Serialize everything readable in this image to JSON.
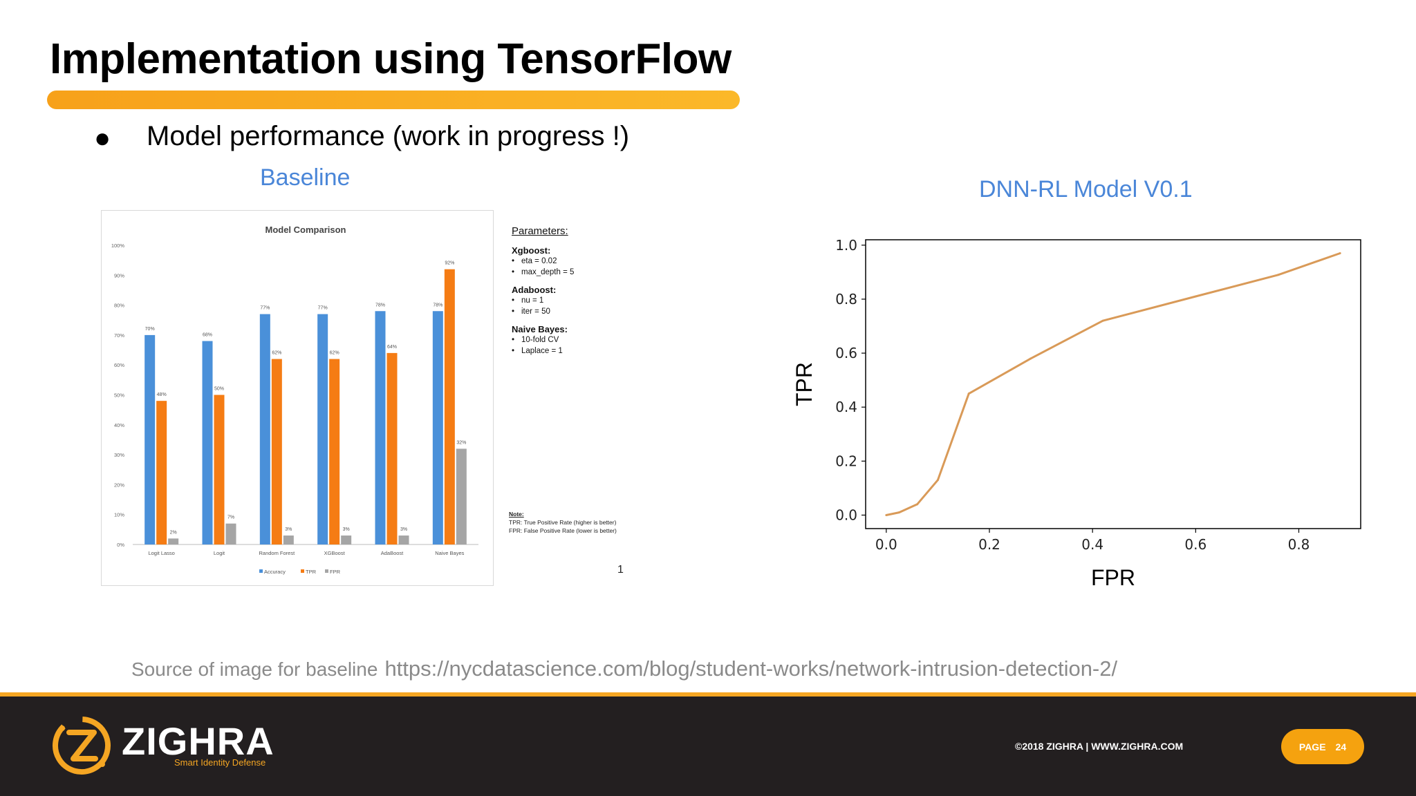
{
  "slide": {
    "title": "Implementation using TensorFlow",
    "bullet_symbol": "●",
    "bullet": "Model performance (work in progress !)",
    "caption_left": "Baseline",
    "caption_right": "DNN-RL Model V0.1",
    "accent_color": "#f5a623",
    "caption_color": "#4a86d8"
  },
  "parameters": {
    "heading": "Parameters:",
    "groups": [
      {
        "name": "Xgboost:",
        "items": [
          "eta = 0.02",
          "max_depth = 5"
        ]
      },
      {
        "name": "Adaboost:",
        "items": [
          "nu = 1",
          "iter = 50"
        ]
      },
      {
        "name": "Naive Bayes:",
        "items": [
          "10-fold CV",
          "Laplace = 1"
        ]
      }
    ]
  },
  "note": {
    "heading": "Note:",
    "lines": [
      "TPR: True Positive Rate (higher is better)",
      "FPR: False Positive Rate (lower is better)"
    ]
  },
  "page_marker": "1",
  "chart_data": [
    {
      "type": "bar",
      "title": "Model Comparison",
      "categories": [
        "Logit Lasso",
        "Logit",
        "Random Forest",
        "XGBoost",
        "AdaBoost",
        "Naive Bayes"
      ],
      "series": [
        {
          "name": "Accuracy",
          "color": "#4a90d9",
          "values": [
            70,
            68,
            77,
            77,
            78,
            78
          ]
        },
        {
          "name": "TPR",
          "color": "#f57c14",
          "values": [
            48,
            50,
            62,
            62,
            64,
            92
          ]
        },
        {
          "name": "FPR",
          "color": "#a5a5a5",
          "values": [
            2,
            7,
            3,
            3,
            3,
            32
          ]
        }
      ],
      "value_labels": [
        [
          "70%",
          "68%",
          "77%",
          "77%",
          "78%",
          "78%"
        ],
        [
          "48%",
          "50%",
          "62%",
          "62%",
          "64%",
          "92%"
        ],
        [
          "2%",
          "7%",
          "3%",
          "3%",
          "3%",
          "32%"
        ]
      ],
      "y_ticks": [
        "0%",
        "10%",
        "20%",
        "30%",
        "40%",
        "50%",
        "60%",
        "70%",
        "80%",
        "90%",
        "100%"
      ],
      "ylim": [
        0,
        100
      ],
      "legend_position": "bottom",
      "grid": false
    },
    {
      "type": "line",
      "title": "",
      "xlabel": "FPR",
      "ylabel": "TPR",
      "xlim": [
        -0.04,
        0.92
      ],
      "ylim": [
        -0.05,
        1.02
      ],
      "x_ticks": [
        0.0,
        0.2,
        0.4,
        0.6,
        0.8
      ],
      "y_ticks": [
        0.0,
        0.2,
        0.4,
        0.6,
        0.8,
        1.0
      ],
      "tick_labels_x": [
        "0.0",
        "0.2",
        "0.4",
        "0.6",
        "0.8"
      ],
      "tick_labels_y": [
        "0.0",
        "0.2",
        "0.4",
        "0.6",
        "0.8",
        "1.0"
      ],
      "grid": false,
      "series": [
        {
          "color": "#d99a58",
          "x": [
            0.0,
            0.025,
            0.06,
            0.1,
            0.16,
            0.28,
            0.42,
            0.6,
            0.76,
            0.88
          ],
          "y": [
            0.0,
            0.01,
            0.04,
            0.13,
            0.45,
            0.58,
            0.72,
            0.81,
            0.89,
            0.97
          ]
        }
      ]
    }
  ],
  "source": {
    "label": "Source of image for baseline",
    "url": "https://nycdatascience.com/blog/student-works/network-intrusion-detection-2/"
  },
  "footer": {
    "brand": "ZIGHRA",
    "tagline": "Smart Identity Defense",
    "copyright": "©2018 ZIGHRA | WWW.ZIGHRA.COM",
    "page_label": "PAGE",
    "page_number": "24"
  }
}
